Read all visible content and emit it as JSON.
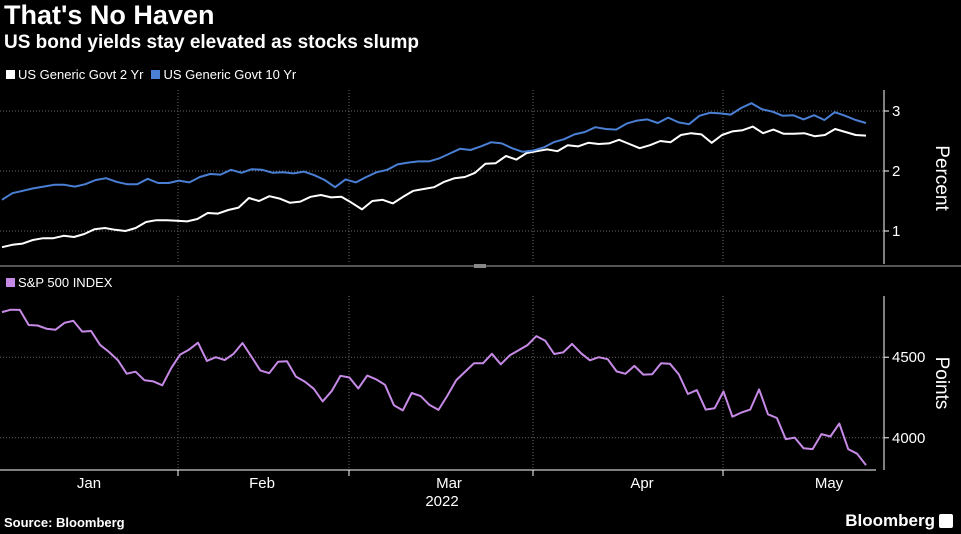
{
  "header": {
    "title": "That's No Haven",
    "subtitle": "US bond yields stay elevated as stocks slump"
  },
  "footer": {
    "source": "Source: Bloomberg",
    "brand": "Bloomberg"
  },
  "colors": {
    "background": "#000000",
    "two_year": "#ffffff",
    "ten_year": "#4a7fd4",
    "sp500": "#c68ae6",
    "grid": "#666666"
  },
  "chart_data": [
    {
      "type": "line",
      "title": "",
      "ylabel": "Percent",
      "ylim": [
        0.45,
        3.35
      ],
      "yticks": [
        1,
        2,
        3
      ],
      "x_axis": {
        "months": [
          "Jan",
          "Feb",
          "Mar",
          "Apr",
          "May"
        ],
        "year": "2022"
      },
      "grid": true,
      "legend": "top-left",
      "series": [
        {
          "name": "US Generic Govt 2 Yr",
          "values": [
            0.73,
            0.77,
            0.79,
            0.85,
            0.88,
            0.88,
            0.92,
            0.9,
            0.95,
            1.03,
            1.05,
            1.02,
            1.0,
            1.05,
            1.15,
            1.18,
            1.18,
            1.17,
            1.16,
            1.2,
            1.3,
            1.29,
            1.35,
            1.39,
            1.55,
            1.5,
            1.58,
            1.54,
            1.47,
            1.49,
            1.57,
            1.6,
            1.56,
            1.57,
            1.47,
            1.36,
            1.5,
            1.52,
            1.46,
            1.57,
            1.67,
            1.7,
            1.73,
            1.82,
            1.88,
            1.9,
            1.97,
            2.12,
            2.13,
            2.25,
            2.19,
            2.3,
            2.33,
            2.36,
            2.33,
            2.43,
            2.41,
            2.47,
            2.45,
            2.46,
            2.52,
            2.45,
            2.38,
            2.43,
            2.5,
            2.48,
            2.6,
            2.63,
            2.61,
            2.47,
            2.6,
            2.66,
            2.68,
            2.74,
            2.63,
            2.69,
            2.62,
            2.62,
            2.63,
            2.58,
            2.6,
            2.7,
            2.65,
            2.6,
            2.59
          ]
        },
        {
          "name": "US Generic Govt 10 Yr",
          "values": [
            1.52,
            1.63,
            1.67,
            1.71,
            1.74,
            1.77,
            1.77,
            1.74,
            1.78,
            1.85,
            1.88,
            1.82,
            1.78,
            1.78,
            1.87,
            1.8,
            1.8,
            1.84,
            1.81,
            1.9,
            1.95,
            1.94,
            2.02,
            1.97,
            2.03,
            2.02,
            1.97,
            1.98,
            1.96,
            1.99,
            1.93,
            1.85,
            1.73,
            1.86,
            1.81,
            1.9,
            1.98,
            2.02,
            2.11,
            2.14,
            2.16,
            2.16,
            2.21,
            2.29,
            2.37,
            2.35,
            2.41,
            2.48,
            2.46,
            2.38,
            2.32,
            2.34,
            2.39,
            2.48,
            2.53,
            2.61,
            2.65,
            2.73,
            2.7,
            2.69,
            2.79,
            2.84,
            2.86,
            2.8,
            2.89,
            2.81,
            2.78,
            2.92,
            2.97,
            2.96,
            2.94,
            3.05,
            3.13,
            3.03,
            2.99,
            2.92,
            2.93,
            2.86,
            2.93,
            2.85,
            2.98,
            2.92,
            2.85,
            2.8
          ]
        }
      ]
    },
    {
      "type": "line",
      "title": "",
      "ylabel": "Points",
      "ylim": [
        3800,
        4880
      ],
      "yticks": [
        4000,
        4500
      ],
      "grid": true,
      "legend": "top-left",
      "series": [
        {
          "name": "S&P 500 INDEX",
          "values": [
            4780,
            4795,
            4794,
            4700,
            4697,
            4677,
            4670,
            4713,
            4726,
            4659,
            4663,
            4577,
            4533,
            4482,
            4398,
            4410,
            4357,
            4350,
            4326,
            4432,
            4516,
            4547,
            4590,
            4477,
            4500,
            4483,
            4521,
            4588,
            4504,
            4418,
            4401,
            4472,
            4475,
            4380,
            4349,
            4304,
            4226,
            4289,
            4385,
            4374,
            4306,
            4386,
            4363,
            4329,
            4202,
            4170,
            4278,
            4259,
            4204,
            4173,
            4262,
            4358,
            4411,
            4463,
            4462,
            4521,
            4456,
            4511,
            4543,
            4575,
            4631,
            4602,
            4520,
            4530,
            4583,
            4525,
            4481,
            4500,
            4488,
            4412,
            4397,
            4446,
            4392,
            4394,
            4463,
            4459,
            4393,
            4272,
            4296,
            4175,
            4183,
            4288,
            4131,
            4156,
            4175,
            4300,
            4146,
            4123,
            3991,
            4001,
            3935,
            3930,
            4023,
            4008,
            4088,
            3930,
            3901,
            3830
          ]
        }
      ]
    }
  ]
}
